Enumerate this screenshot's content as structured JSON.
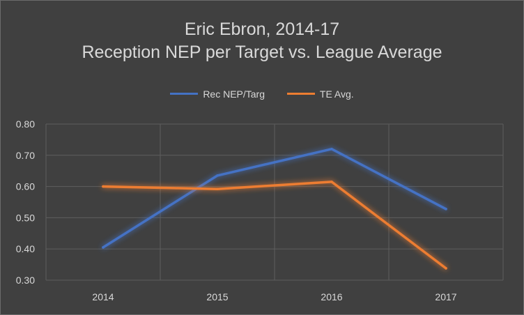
{
  "chart_data": {
    "type": "line",
    "title_line1": "Eric Ebron, 2014-17",
    "title_line2": "Reception NEP per Target vs. League Average",
    "categories": [
      "2014",
      "2015",
      "2016",
      "2017"
    ],
    "ylim": [
      0.3,
      0.8
    ],
    "yticks": [
      "0.80",
      "0.70",
      "0.60",
      "0.50",
      "0.40",
      "0.30"
    ],
    "grid": true,
    "legend_position": "top",
    "series": [
      {
        "name": "Rec NEP/Targ",
        "values": [
          0.405,
          0.635,
          0.72,
          0.528
        ],
        "color": "#4472c4"
      },
      {
        "name": "TE Avg.",
        "values": [
          0.6,
          0.592,
          0.615,
          0.338
        ],
        "color": "#ed7d31"
      }
    ]
  }
}
